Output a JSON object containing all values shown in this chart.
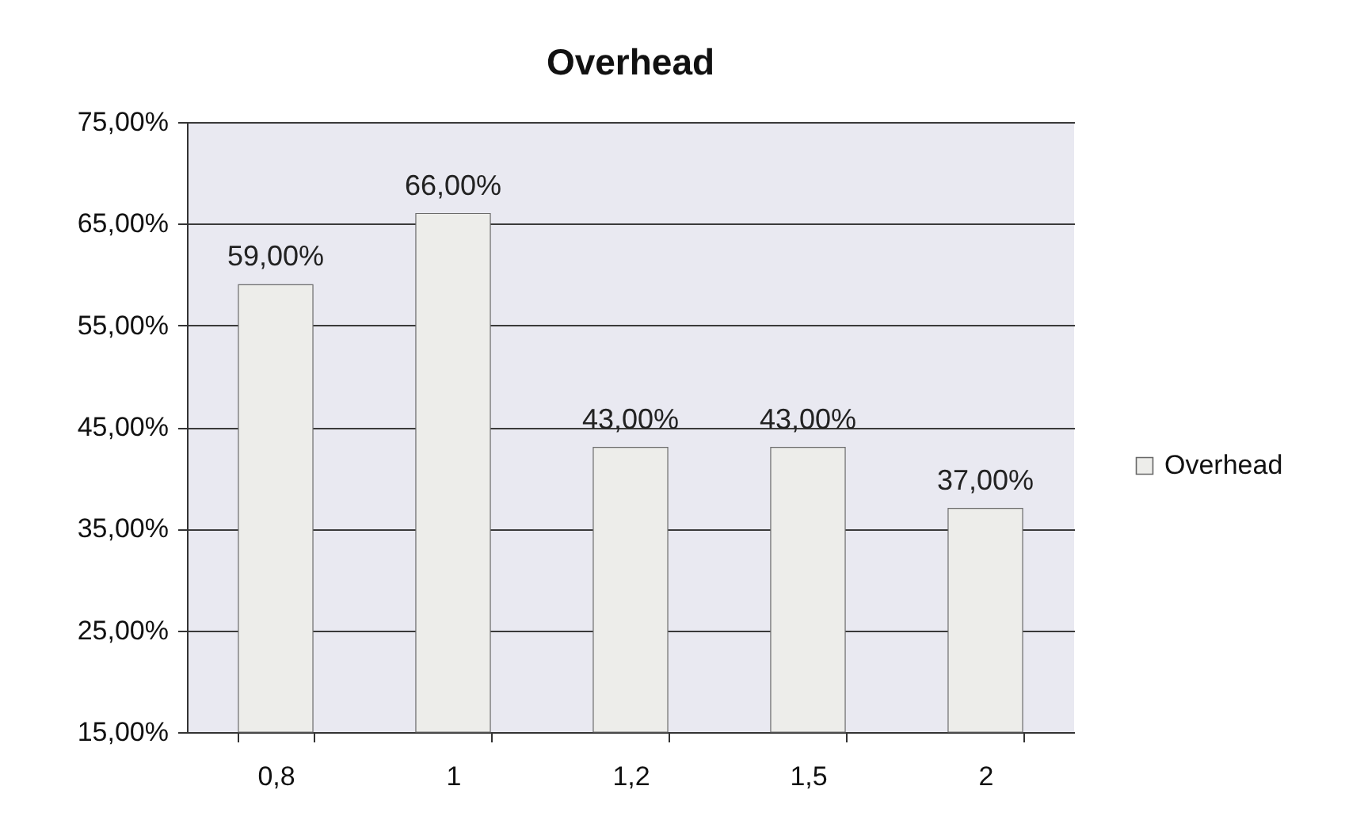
{
  "chart_data": {
    "type": "bar",
    "title": "Overhead",
    "categories": [
      "0,8",
      "1",
      "1,2",
      "1,5",
      "2"
    ],
    "series": [
      {
        "name": "Overhead",
        "color": "#ededea",
        "values": [
          59,
          66,
          43,
          43,
          37
        ],
        "value_labels": [
          "59,00%",
          "66,00%",
          "43,00%",
          "43,00%",
          "37,00%"
        ]
      }
    ],
    "ylim": [
      15,
      75
    ],
    "yticks": [
      {
        "value": 15,
        "label": "15,00%"
      },
      {
        "value": 25,
        "label": "25,00%"
      },
      {
        "value": 35,
        "label": "35,00%"
      },
      {
        "value": 45,
        "label": "45,00%"
      },
      {
        "value": 55,
        "label": "55,00%"
      },
      {
        "value": 65,
        "label": "65,00%"
      },
      {
        "value": 75,
        "label": "75,00%"
      }
    ],
    "grid": "y",
    "legend": "right"
  }
}
